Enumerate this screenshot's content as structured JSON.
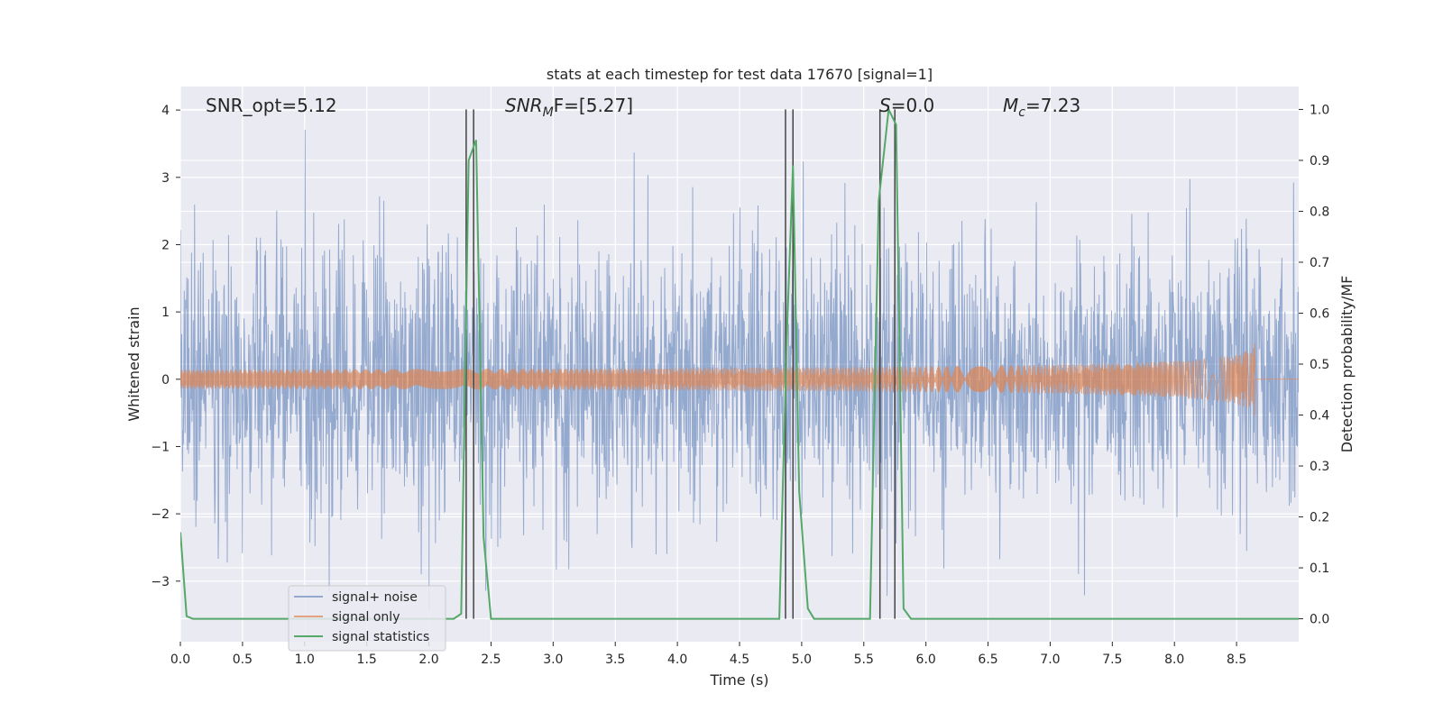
{
  "chart_data": {
    "type": "line",
    "title": "stats at each timestep for test data 17670 [signal=1]",
    "xlabel": "Time (s)",
    "ylabel": "Whitened strain",
    "y2label": "Detection probability/MF",
    "xlim": [
      0,
      9
    ],
    "ylim": [
      -3.9,
      4.35
    ],
    "y2lim": [
      -0.045,
      1.045
    ],
    "xticks": [
      "0.0",
      "0.5",
      "1.0",
      "1.5",
      "2.0",
      "2.5",
      "3.0",
      "3.5",
      "4.0",
      "4.5",
      "5.0",
      "5.5",
      "6.0",
      "6.5",
      "7.0",
      "7.5",
      "8.0",
      "8.5"
    ],
    "xtick_values": [
      0,
      0.5,
      1,
      1.5,
      2,
      2.5,
      3,
      3.5,
      4,
      4.5,
      5,
      5.5,
      6,
      6.5,
      7,
      7.5,
      8,
      8.5
    ],
    "yticks": [
      "−3",
      "−2",
      "−1",
      "0",
      "1",
      "2",
      "3",
      "4"
    ],
    "ytick_values": [
      -3,
      -2,
      -1,
      0,
      1,
      2,
      3,
      4
    ],
    "y2ticks": [
      "0.0",
      "0.1",
      "0.2",
      "0.3",
      "0.4",
      "0.5",
      "0.6",
      "0.7",
      "0.8",
      "0.9",
      "1.0"
    ],
    "y2tick_values": [
      0,
      0.1,
      0.2,
      0.3,
      0.4,
      0.5,
      0.6,
      0.7,
      0.8,
      0.9,
      1.0
    ],
    "grid": true,
    "legend_position": "lower-left",
    "annotations": [
      {
        "prefix": "SNR_opt",
        "sub": "",
        "suffix": "=5.12",
        "italic": false
      },
      {
        "prefix": "SNR",
        "sub": "M",
        "suffix": "F=[5.27]",
        "italic": true
      },
      {
        "prefix": "S",
        "sub": "",
        "suffix": "=0.0",
        "italic": true
      },
      {
        "prefix": "M",
        "sub": "c",
        "suffix": "=7.23",
        "italic": true
      }
    ],
    "series": [
      {
        "name": "signal+ noise",
        "color": "#4c72b0",
        "kind": "noise",
        "x_start": 0,
        "x_end": 9,
        "sigma": 1.0
      },
      {
        "name": "signal only",
        "color": "#dd8452",
        "kind": "chirp",
        "x_start": 0,
        "x_end": 9,
        "merger_time": 8.65,
        "peak_amplitude": 0.55
      },
      {
        "name": "signal statistics",
        "color": "#55a868",
        "kind": "stat_line",
        "axis": "right",
        "x": [
          0.0,
          0.05,
          0.1,
          2.2,
          2.26,
          2.32,
          2.38,
          2.44,
          2.5,
          4.82,
          4.88,
          4.93,
          4.98,
          5.05,
          5.1,
          5.55,
          5.62,
          5.7,
          5.76,
          5.82,
          5.88,
          9.0
        ],
        "y": [
          0.17,
          0.005,
          0.0,
          0.0,
          0.01,
          0.9,
          0.94,
          0.16,
          0.0,
          0.0,
          0.55,
          0.89,
          0.25,
          0.02,
          0.0,
          0.0,
          0.82,
          1.0,
          0.97,
          0.02,
          0.0,
          0.0
        ]
      }
    ],
    "vertical_lines": {
      "color": "#444444",
      "x": [
        2.3,
        2.36,
        4.87,
        4.93,
        5.63,
        5.75
      ],
      "y_range": [
        0,
        1.0
      ]
    }
  }
}
